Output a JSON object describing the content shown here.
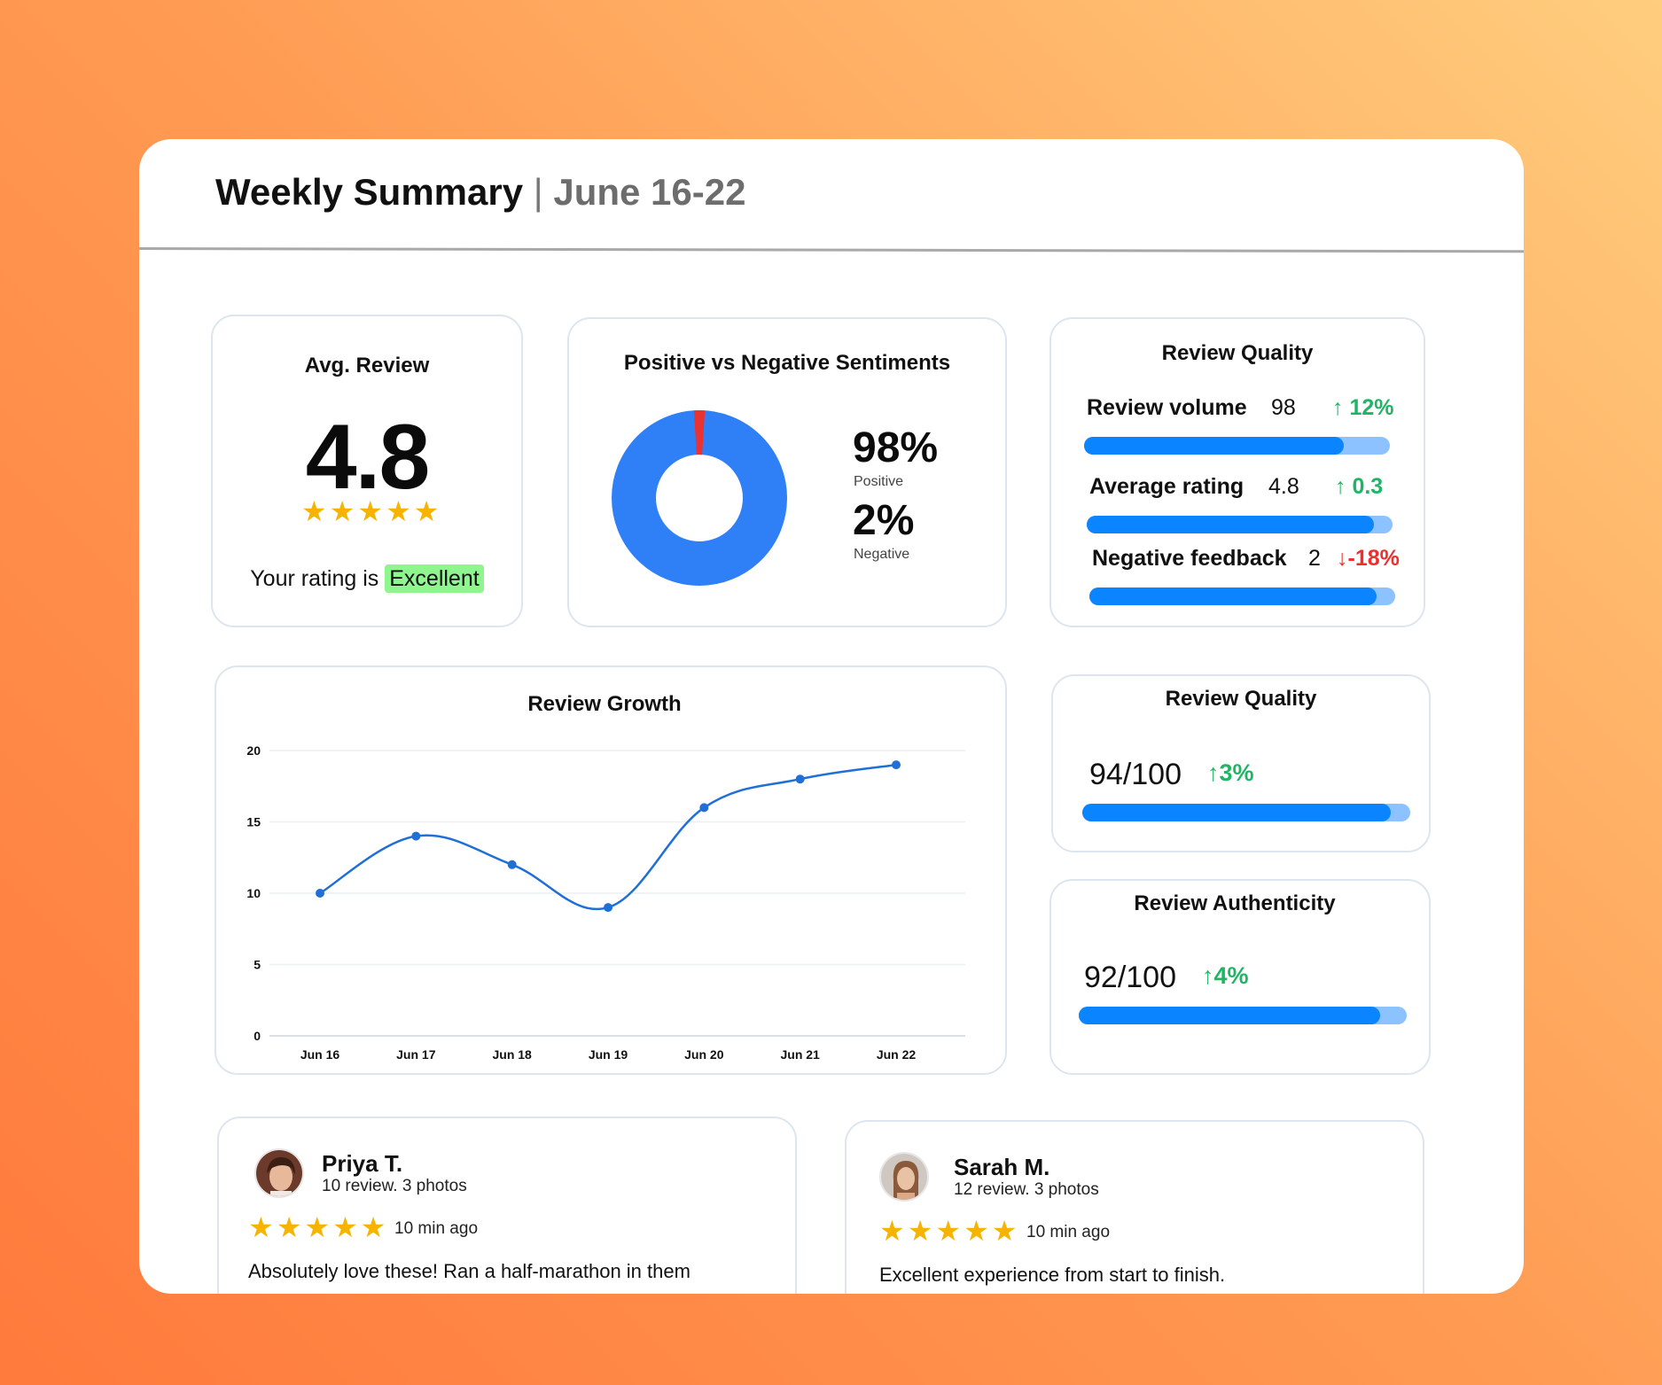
{
  "header": {
    "title": "Weekly Summary",
    "separator": "|",
    "date_range": "June 16-22"
  },
  "avg_review": {
    "title": "Avg. Review",
    "value": "4.8",
    "stars": 5,
    "rating_prefix": "Your rating is",
    "rating_word": "Excellent"
  },
  "sentiment": {
    "title": "Positive vs Negative Sentiments",
    "positive_pct": "98%",
    "positive_label": "Positive",
    "negative_pct": "2%",
    "negative_label": "Negative",
    "colors": {
      "positive": "#2f7ff7",
      "negative": "#ea3232"
    }
  },
  "review_quality": {
    "title": "Review Quality",
    "rows": [
      {
        "label": "Review volume",
        "value": "98",
        "delta": "12%",
        "direction": "up",
        "fill": 0.85
      },
      {
        "label": "Average rating",
        "value": "4.8",
        "delta": "0.3",
        "direction": "up",
        "fill": 0.94
      },
      {
        "label": "Negative feedback",
        "value": "2",
        "delta": "-18%",
        "direction": "down",
        "fill": 0.94
      }
    ]
  },
  "review_growth": {
    "title": "Review Growth"
  },
  "chart_data": {
    "type": "line",
    "title": "Review Growth",
    "x": [
      "Jun 16",
      "Jun 17",
      "Jun 18",
      "Jun 19",
      "Jun 20",
      "Jun 21",
      "Jun 22"
    ],
    "series": [
      {
        "values": [
          10,
          14,
          12,
          9,
          16,
          18,
          19
        ]
      }
    ],
    "ylim": [
      0,
      20
    ],
    "yticks": [
      "0",
      "5",
      "10",
      "15",
      "20"
    ],
    "grid": true,
    "color": "#1f6fd6"
  },
  "quality_score": {
    "title": "Review Quality",
    "score": "94/100",
    "delta": "3%",
    "fill": 0.94
  },
  "authenticity": {
    "title": "Review Authenticity",
    "score": "92/100",
    "delta": "4%",
    "fill": 0.92
  },
  "reviews": [
    {
      "name": "Priya T.",
      "meta": "10 review. 3 photos",
      "stars": 5,
      "time": "10 min ago",
      "text": "Absolutely love these! Ran a half-marathon in them"
    },
    {
      "name": "Sarah M.",
      "meta": "12 review. 3 photos",
      "stars": 5,
      "time": "10 min ago",
      "text": "Excellent experience from start to finish."
    }
  ],
  "icons": {
    "star": "star-icon",
    "arrow_up": "arrow-up-icon",
    "arrow_down": "arrow-down-icon"
  }
}
